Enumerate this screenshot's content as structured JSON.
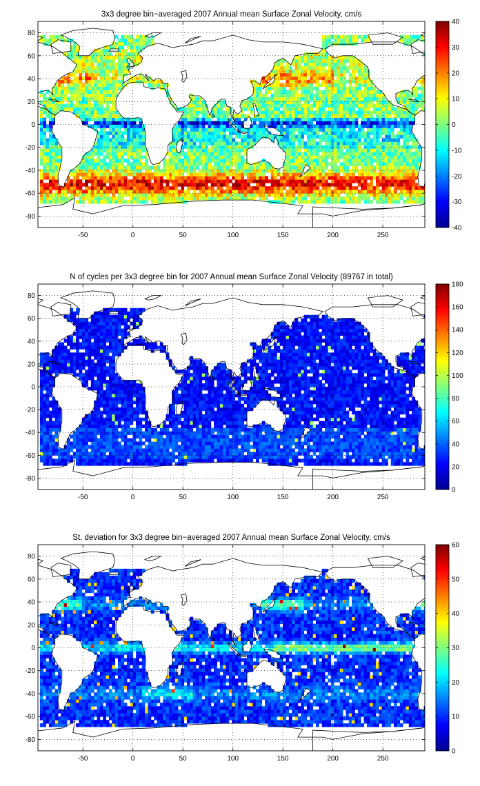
{
  "colormap": "jet",
  "colors": {
    "land": "#ffffff",
    "coast": "#000000",
    "axis": "#000000",
    "grid": "#000000"
  },
  "chart_data": [
    {
      "type": "heatmap",
      "title": "3x3 degree bin−averaged 2007 Annual mean Surface Zonal Velocity, cm/s",
      "xlim": [
        -95,
        292
      ],
      "ylim": [
        -90,
        90
      ],
      "xticks": [
        -50,
        0,
        50,
        100,
        150,
        200,
        250
      ],
      "yticks": [
        -80,
        -60,
        -40,
        -20,
        0,
        20,
        40,
        60,
        80
      ],
      "colorbar": {
        "min": -40,
        "max": 40,
        "ticks": [
          -40,
          -30,
          -20,
          -10,
          0,
          10,
          20,
          30,
          40
        ]
      },
      "bin_deg": 3,
      "grid": true,
      "field": "zonal_velocity"
    },
    {
      "type": "heatmap",
      "title": "N of cycles per 3x3 degree bin for 2007 Annual mean Surface Zonal Velocity (89767 in total)",
      "xlim": [
        -95,
        292
      ],
      "ylim": [
        -90,
        90
      ],
      "xticks": [
        -50,
        0,
        50,
        100,
        150,
        200,
        250
      ],
      "yticks": [
        -80,
        -60,
        -40,
        -20,
        0,
        20,
        40,
        60,
        80
      ],
      "colorbar": {
        "min": 0,
        "max": 180,
        "ticks": [
          0,
          20,
          40,
          60,
          80,
          100,
          120,
          140,
          160,
          180
        ]
      },
      "bin_deg": 3,
      "grid": true,
      "field": "count",
      "total": 89767
    },
    {
      "type": "heatmap",
      "title": "St. deviation for 3x3 degree bin−averaged 2007 Annual mean Surface Zonal Velocity, cm/s",
      "xlim": [
        -95,
        292
      ],
      "ylim": [
        -90,
        90
      ],
      "xticks": [
        -50,
        0,
        50,
        100,
        150,
        200,
        250
      ],
      "yticks": [
        -80,
        -60,
        -40,
        -20,
        0,
        20,
        40,
        60,
        80
      ],
      "colorbar": {
        "min": 0,
        "max": 60,
        "ticks": [
          0,
          10,
          20,
          30,
          40,
          50,
          60
        ]
      },
      "bin_deg": 3,
      "grid": true,
      "field": "std_dev"
    }
  ]
}
